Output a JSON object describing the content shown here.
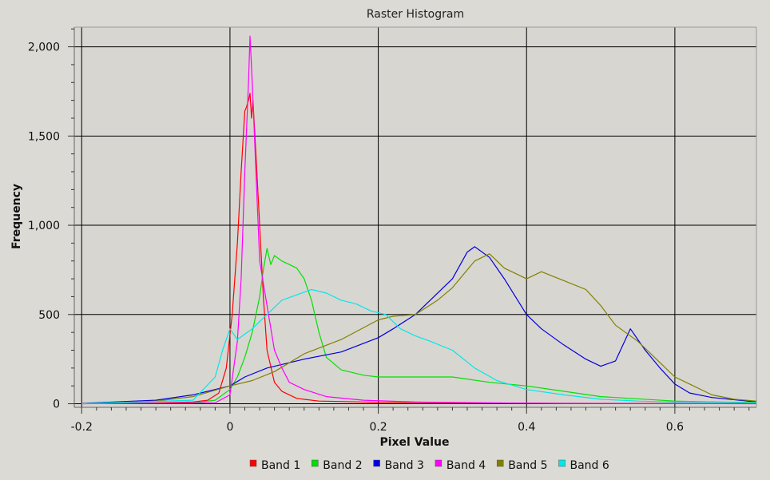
{
  "chart_data": {
    "type": "line",
    "title": "Raster Histogram",
    "xlabel": "Pixel Value",
    "ylabel": "Frequency",
    "xlim": [
      -0.21,
      0.71
    ],
    "ylim": [
      -20,
      2110
    ],
    "x_ticks": [
      -0.2,
      0,
      0.2,
      0.4,
      0.6
    ],
    "x_tick_labels": [
      "-0.2",
      "0",
      "0.2",
      "0.4",
      "0.6"
    ],
    "y_ticks": [
      0,
      500,
      1000,
      1500,
      2000
    ],
    "y_tick_labels": [
      "0",
      "500",
      "1,000",
      "1,500",
      "2,000"
    ],
    "grid": true,
    "legend_position": "bottom",
    "series": [
      {
        "name": "Band 1",
        "color": "#ff0000",
        "points": [
          [
            -0.2,
            2
          ],
          [
            -0.1,
            5
          ],
          [
            -0.05,
            10
          ],
          [
            -0.03,
            20
          ],
          [
            -0.015,
            60
          ],
          [
            -0.005,
            200
          ],
          [
            0.003,
            500
          ],
          [
            0.01,
            900
          ],
          [
            0.015,
            1300
          ],
          [
            0.02,
            1640
          ],
          [
            0.022,
            1660
          ],
          [
            0.025,
            1700
          ],
          [
            0.027,
            1740
          ],
          [
            0.029,
            1600
          ],
          [
            0.031,
            1700
          ],
          [
            0.035,
            1400
          ],
          [
            0.04,
            1000
          ],
          [
            0.045,
            600
          ],
          [
            0.05,
            300
          ],
          [
            0.06,
            120
          ],
          [
            0.07,
            70
          ],
          [
            0.09,
            30
          ],
          [
            0.12,
            15
          ],
          [
            0.2,
            8
          ],
          [
            0.3,
            5
          ],
          [
            0.4,
            3
          ],
          [
            0.5,
            2
          ],
          [
            0.71,
            1
          ]
        ]
      },
      {
        "name": "Band 2",
        "color": "#00e000",
        "points": [
          [
            -0.2,
            0
          ],
          [
            -0.05,
            5
          ],
          [
            -0.02,
            20
          ],
          [
            0,
            80
          ],
          [
            0.01,
            150
          ],
          [
            0.02,
            260
          ],
          [
            0.03,
            400
          ],
          [
            0.04,
            600
          ],
          [
            0.045,
            750
          ],
          [
            0.05,
            870
          ],
          [
            0.055,
            780
          ],
          [
            0.06,
            830
          ],
          [
            0.07,
            800
          ],
          [
            0.08,
            780
          ],
          [
            0.09,
            760
          ],
          [
            0.1,
            700
          ],
          [
            0.11,
            580
          ],
          [
            0.12,
            400
          ],
          [
            0.13,
            260
          ],
          [
            0.15,
            190
          ],
          [
            0.18,
            160
          ],
          [
            0.2,
            150
          ],
          [
            0.25,
            150
          ],
          [
            0.3,
            150
          ],
          [
            0.35,
            120
          ],
          [
            0.4,
            100
          ],
          [
            0.45,
            70
          ],
          [
            0.5,
            40
          ],
          [
            0.6,
            15
          ],
          [
            0.71,
            5
          ]
        ]
      },
      {
        "name": "Band 3",
        "color": "#0000dd",
        "points": [
          [
            -0.2,
            2
          ],
          [
            -0.1,
            20
          ],
          [
            -0.05,
            50
          ],
          [
            0,
            100
          ],
          [
            0.02,
            150
          ],
          [
            0.05,
            200
          ],
          [
            0.1,
            250
          ],
          [
            0.15,
            290
          ],
          [
            0.2,
            370
          ],
          [
            0.22,
            420
          ],
          [
            0.25,
            500
          ],
          [
            0.27,
            580
          ],
          [
            0.3,
            700
          ],
          [
            0.32,
            850
          ],
          [
            0.33,
            880
          ],
          [
            0.35,
            820
          ],
          [
            0.37,
            700
          ],
          [
            0.4,
            500
          ],
          [
            0.42,
            420
          ],
          [
            0.45,
            330
          ],
          [
            0.48,
            250
          ],
          [
            0.5,
            210
          ],
          [
            0.52,
            240
          ],
          [
            0.54,
            420
          ],
          [
            0.56,
            300
          ],
          [
            0.58,
            200
          ],
          [
            0.6,
            110
          ],
          [
            0.62,
            60
          ],
          [
            0.65,
            35
          ],
          [
            0.71,
            10
          ]
        ]
      },
      {
        "name": "Band 4",
        "color": "#ff00ff",
        "points": [
          [
            -0.2,
            0
          ],
          [
            -0.02,
            5
          ],
          [
            0,
            50
          ],
          [
            0.01,
            350
          ],
          [
            0.015,
            700
          ],
          [
            0.02,
            1300
          ],
          [
            0.025,
            1800
          ],
          [
            0.027,
            2060
          ],
          [
            0.03,
            1800
          ],
          [
            0.035,
            1300
          ],
          [
            0.04,
            800
          ],
          [
            0.05,
            550
          ],
          [
            0.06,
            300
          ],
          [
            0.07,
            200
          ],
          [
            0.08,
            120
          ],
          [
            0.1,
            80
          ],
          [
            0.13,
            40
          ],
          [
            0.18,
            20
          ],
          [
            0.25,
            10
          ],
          [
            0.35,
            5
          ],
          [
            0.45,
            2
          ],
          [
            0.71,
            0
          ]
        ]
      },
      {
        "name": "Band 5",
        "color": "#808000",
        "points": [
          [
            -0.2,
            0
          ],
          [
            -0.1,
            15
          ],
          [
            -0.05,
            40
          ],
          [
            0,
            100
          ],
          [
            0.03,
            130
          ],
          [
            0.06,
            180
          ],
          [
            0.1,
            280
          ],
          [
            0.15,
            360
          ],
          [
            0.2,
            470
          ],
          [
            0.22,
            490
          ],
          [
            0.25,
            500
          ],
          [
            0.28,
            580
          ],
          [
            0.3,
            650
          ],
          [
            0.33,
            800
          ],
          [
            0.35,
            840
          ],
          [
            0.37,
            760
          ],
          [
            0.4,
            700
          ],
          [
            0.42,
            740
          ],
          [
            0.45,
            690
          ],
          [
            0.48,
            640
          ],
          [
            0.5,
            550
          ],
          [
            0.52,
            440
          ],
          [
            0.55,
            350
          ],
          [
            0.58,
            230
          ],
          [
            0.6,
            150
          ],
          [
            0.62,
            110
          ],
          [
            0.65,
            50
          ],
          [
            0.68,
            25
          ],
          [
            0.71,
            15
          ]
        ]
      },
      {
        "name": "Band 6",
        "color": "#00e8e8",
        "points": [
          [
            -0.2,
            0
          ],
          [
            -0.05,
            20
          ],
          [
            -0.02,
            150
          ],
          [
            -0.01,
            300
          ],
          [
            0,
            420
          ],
          [
            0.01,
            360
          ],
          [
            0.03,
            420
          ],
          [
            0.05,
            500
          ],
          [
            0.07,
            580
          ],
          [
            0.09,
            610
          ],
          [
            0.11,
            640
          ],
          [
            0.13,
            620
          ],
          [
            0.15,
            580
          ],
          [
            0.17,
            560
          ],
          [
            0.19,
            520
          ],
          [
            0.21,
            500
          ],
          [
            0.23,
            420
          ],
          [
            0.25,
            380
          ],
          [
            0.27,
            350
          ],
          [
            0.3,
            300
          ],
          [
            0.33,
            200
          ],
          [
            0.36,
            130
          ],
          [
            0.4,
            80
          ],
          [
            0.45,
            50
          ],
          [
            0.5,
            25
          ],
          [
            0.55,
            15
          ],
          [
            0.6,
            10
          ],
          [
            0.71,
            8
          ]
        ]
      }
    ]
  }
}
